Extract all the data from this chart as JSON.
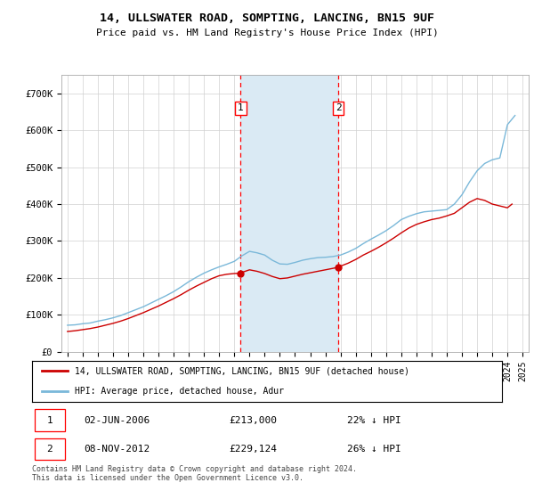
{
  "title": "14, ULLSWATER ROAD, SOMPTING, LANCING, BN15 9UF",
  "subtitle": "Price paid vs. HM Land Registry's House Price Index (HPI)",
  "legend_line1": "14, ULLSWATER ROAD, SOMPTING, LANCING, BN15 9UF (detached house)",
  "legend_line2": "HPI: Average price, detached house, Adur",
  "sale1_date": "02-JUN-2006",
  "sale1_price": 213000,
  "sale1_label": "22% ↓ HPI",
  "sale2_date": "08-NOV-2012",
  "sale2_price": 229124,
  "sale2_label": "26% ↓ HPI",
  "footnote": "Contains HM Land Registry data © Crown copyright and database right 2024.\nThis data is licensed under the Open Government Licence v3.0.",
  "sale_color": "#cc0000",
  "hpi_color": "#7ab8d9",
  "shaded_region_color": "#daeaf4",
  "ylim": [
    0,
    750000
  ],
  "yticks": [
    0,
    100000,
    200000,
    300000,
    400000,
    500000,
    600000,
    700000
  ],
  "ytick_labels": [
    "£0",
    "£100K",
    "£200K",
    "£300K",
    "£400K",
    "£500K",
    "£600K",
    "£700K"
  ],
  "sale1_x": 2006.42,
  "sale2_x": 2012.85,
  "hpi_years": [
    1995.0,
    1995.5,
    1996.0,
    1996.5,
    1997.0,
    1997.5,
    1998.0,
    1998.5,
    1999.0,
    1999.5,
    2000.0,
    2000.5,
    2001.0,
    2001.5,
    2002.0,
    2002.5,
    2003.0,
    2003.5,
    2004.0,
    2004.5,
    2005.0,
    2005.5,
    2006.0,
    2006.5,
    2007.0,
    2007.5,
    2008.0,
    2008.5,
    2009.0,
    2009.5,
    2010.0,
    2010.5,
    2011.0,
    2011.5,
    2012.0,
    2012.5,
    2013.0,
    2013.5,
    2014.0,
    2014.5,
    2015.0,
    2015.5,
    2016.0,
    2016.5,
    2017.0,
    2017.5,
    2018.0,
    2018.5,
    2019.0,
    2019.5,
    2020.0,
    2020.5,
    2021.0,
    2021.5,
    2022.0,
    2022.5,
    2023.0,
    2023.5,
    2024.0,
    2024.5
  ],
  "hpi_values": [
    72000,
    73000,
    76000,
    78000,
    83000,
    87000,
    92000,
    98000,
    106000,
    114000,
    122000,
    132000,
    142000,
    152000,
    163000,
    176000,
    190000,
    202000,
    213000,
    222000,
    230000,
    237000,
    245000,
    260000,
    272000,
    268000,
    262000,
    248000,
    238000,
    237000,
    242000,
    248000,
    252000,
    255000,
    256000,
    258000,
    262000,
    270000,
    280000,
    293000,
    305000,
    316000,
    328000,
    342000,
    358000,
    367000,
    374000,
    379000,
    381000,
    383000,
    385000,
    400000,
    425000,
    460000,
    490000,
    510000,
    520000,
    525000,
    615000,
    640000
  ],
  "sale_years": [
    1995.0,
    1995.5,
    1996.0,
    1996.5,
    1997.0,
    1997.5,
    1998.0,
    1998.5,
    1999.0,
    1999.5,
    2000.0,
    2000.5,
    2001.0,
    2001.5,
    2002.0,
    2002.5,
    2003.0,
    2003.5,
    2004.0,
    2004.5,
    2005.0,
    2005.5,
    2006.0,
    2006.42,
    2006.5,
    2007.0,
    2007.5,
    2008.0,
    2008.5,
    2009.0,
    2009.5,
    2010.0,
    2010.5,
    2011.0,
    2011.5,
    2012.0,
    2012.5,
    2012.85,
    2013.0,
    2013.5,
    2014.0,
    2014.5,
    2015.0,
    2015.5,
    2016.0,
    2016.5,
    2017.0,
    2017.5,
    2018.0,
    2018.5,
    2019.0,
    2019.5,
    2020.0,
    2020.5,
    2021.0,
    2021.5,
    2022.0,
    2022.5,
    2023.0,
    2023.5,
    2024.0,
    2024.3
  ],
  "sale_values": [
    55000,
    57000,
    60000,
    63000,
    67000,
    72000,
    77000,
    83000,
    90000,
    98000,
    106000,
    115000,
    124000,
    134000,
    144000,
    155000,
    167000,
    178000,
    188000,
    198000,
    206000,
    210000,
    212000,
    213000,
    215000,
    222000,
    218000,
    212000,
    204000,
    198000,
    200000,
    205000,
    210000,
    214000,
    218000,
    222000,
    226000,
    229124,
    232000,
    240000,
    250000,
    262000,
    272000,
    283000,
    295000,
    308000,
    322000,
    335000,
    345000,
    352000,
    358000,
    362000,
    368000,
    375000,
    390000,
    405000,
    415000,
    410000,
    400000,
    395000,
    390000,
    400000
  ]
}
